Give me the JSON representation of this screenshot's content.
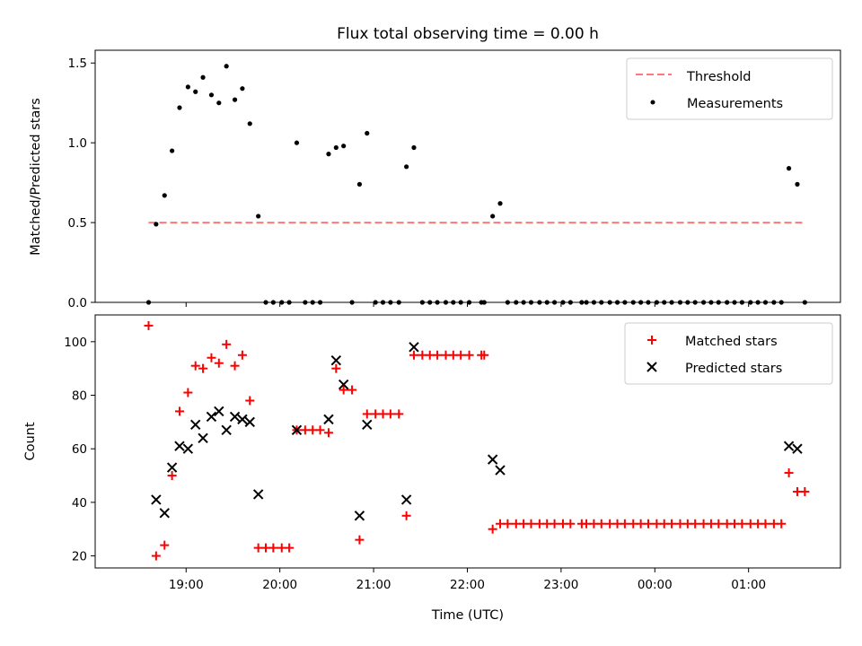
{
  "chart_data": {
    "title": "Flux total observing time = 0.00 h",
    "x_ticks": [
      "19:00",
      "20:00",
      "21:00",
      "22:00",
      "23:00",
      "00:00",
      "01:00"
    ],
    "x_tick_hours": [
      19,
      20,
      21,
      22,
      23,
      24,
      25
    ],
    "xlabel": "Time (UTC)",
    "xlim": [
      18.03,
      25.98
    ],
    "panels": [
      {
        "type": "scatter",
        "ylabel": "Matched/Predicted stars",
        "ylim": [
          0,
          1.58
        ],
        "y_ticks": [
          0.0,
          0.5,
          1.0,
          1.5
        ],
        "legend": [
          "Threshold",
          "Measurements"
        ],
        "legend_position": "top-right",
        "colors": {
          "threshold": "#ff7777",
          "measurements": "#000000"
        },
        "threshold": {
          "name": "Threshold",
          "value": 0.5,
          "x_start": 18.6,
          "x_end": 25.6
        },
        "measurements": {
          "name": "Measurements",
          "x": [
            18.6,
            18.68,
            18.77,
            18.85,
            18.93,
            19.02,
            19.1,
            19.18,
            19.27,
            19.35,
            19.43,
            19.52,
            19.6,
            19.68,
            19.77,
            19.85,
            19.93,
            20.02,
            20.1,
            20.18,
            20.27,
            20.35,
            20.43,
            20.52,
            20.6,
            20.68,
            20.77,
            20.85,
            20.93,
            21.02,
            21.1,
            21.18,
            21.27,
            21.35,
            21.43,
            21.52,
            21.6,
            21.68,
            21.77,
            21.85,
            21.93,
            22.02,
            22.15,
            22.18,
            22.27,
            22.35,
            22.43,
            22.52,
            22.6,
            22.68,
            22.77,
            22.85,
            22.93,
            23.02,
            23.1,
            23.22,
            23.27,
            23.35,
            23.43,
            23.52,
            23.6,
            23.68,
            23.77,
            23.85,
            23.93,
            24.02,
            24.1,
            24.18,
            24.27,
            24.35,
            24.43,
            24.52,
            24.6,
            24.68,
            24.77,
            24.85,
            24.93,
            25.02,
            25.1,
            25.18,
            25.27,
            25.35,
            25.43,
            25.52,
            25.6
          ],
          "y": [
            0.0,
            0.49,
            0.67,
            0.95,
            1.22,
            1.35,
            1.32,
            1.41,
            1.3,
            1.25,
            1.48,
            1.27,
            1.34,
            1.12,
            0.54,
            0.0,
            0.0,
            0.0,
            0.0,
            1.0,
            0.0,
            0.0,
            0.0,
            0.93,
            0.97,
            0.98,
            0.0,
            0.74,
            1.06,
            0.0,
            0.0,
            0.0,
            0.0,
            0.85,
            0.97,
            0.0,
            0.0,
            0.0,
            0.0,
            0.0,
            0.0,
            0.0,
            0.0,
            0.0,
            0.54,
            0.62,
            0.0,
            0.0,
            0.0,
            0.0,
            0.0,
            0.0,
            0.0,
            0.0,
            0.0,
            0.0,
            0.0,
            0.0,
            0.0,
            0.0,
            0.0,
            0.0,
            0.0,
            0.0,
            0.0,
            0.0,
            0.0,
            0.0,
            0.0,
            0.0,
            0.0,
            0.0,
            0.0,
            0.0,
            0.0,
            0.0,
            0.0,
            0.0,
            0.0,
            0.0,
            0.0,
            0.0,
            0.84,
            0.74,
            0.0
          ]
        }
      },
      {
        "type": "scatter",
        "ylabel": "Count",
        "ylim": [
          15.5,
          110
        ],
        "y_ticks": [
          20,
          40,
          60,
          80,
          100
        ],
        "legend": [
          "Matched stars",
          "Predicted stars"
        ],
        "legend_position": "top-right",
        "colors": {
          "matched": "#ff0000",
          "predicted": "#000000"
        },
        "series": [
          {
            "name": "Matched stars",
            "marker": "+",
            "x": [
              18.6,
              18.68,
              18.77,
              18.85,
              18.93,
              19.02,
              19.1,
              19.18,
              19.27,
              19.35,
              19.43,
              19.52,
              19.6,
              19.68,
              19.77,
              19.85,
              19.93,
              20.02,
              20.1,
              20.18,
              20.27,
              20.35,
              20.43,
              20.52,
              20.6,
              20.68,
              20.77,
              20.85,
              20.93,
              21.02,
              21.1,
              21.18,
              21.27,
              21.35,
              21.43,
              21.52,
              21.6,
              21.68,
              21.77,
              21.85,
              21.93,
              22.02,
              22.15,
              22.18,
              22.27,
              22.35,
              22.43,
              22.52,
              22.6,
              22.68,
              22.77,
              22.85,
              22.93,
              23.02,
              23.1,
              23.22,
              23.27,
              23.35,
              23.43,
              23.52,
              23.6,
              23.68,
              23.77,
              23.85,
              23.93,
              24.02,
              24.1,
              24.18,
              24.27,
              24.35,
              24.43,
              24.52,
              24.6,
              24.68,
              24.77,
              24.85,
              24.93,
              25.02,
              25.1,
              25.18,
              25.27,
              25.35,
              25.43,
              25.52,
              25.6
            ],
            "y": [
              106,
              20,
              24,
              50,
              74,
              81,
              91,
              90,
              94,
              92,
              99,
              91,
              95,
              78,
              23,
              23,
              23,
              23,
              23,
              67,
              67,
              67,
              67,
              66,
              90,
              82,
              82,
              26,
              73,
              73,
              73,
              73,
              73,
              35,
              95,
              95,
              95,
              95,
              95,
              95,
              95,
              95,
              95,
              95,
              30,
              32,
              32,
              32,
              32,
              32,
              32,
              32,
              32,
              32,
              32,
              32,
              32,
              32,
              32,
              32,
              32,
              32,
              32,
              32,
              32,
              32,
              32,
              32,
              32,
              32,
              32,
              32,
              32,
              32,
              32,
              32,
              32,
              32,
              32,
              32,
              32,
              32,
              51,
              44,
              44
            ]
          },
          {
            "name": "Predicted stars",
            "marker": "x",
            "x": [
              18.68,
              18.77,
              18.85,
              18.93,
              19.02,
              19.1,
              19.18,
              19.27,
              19.35,
              19.43,
              19.52,
              19.6,
              19.68,
              19.77,
              20.18,
              20.52,
              20.6,
              20.68,
              20.85,
              20.93,
              21.35,
              21.43,
              22.27,
              22.35,
              25.43,
              25.52
            ],
            "y": [
              41,
              36,
              53,
              61,
              60,
              69,
              64,
              72,
              74,
              67,
              72,
              71,
              70,
              43,
              67,
              71,
              93,
              84,
              35,
              69,
              41,
              98,
              56,
              52,
              61,
              60
            ]
          }
        ]
      }
    ]
  }
}
